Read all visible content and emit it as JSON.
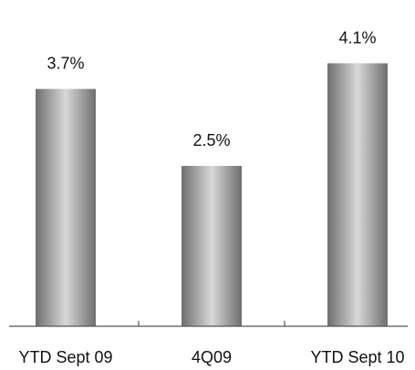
{
  "chart_data": {
    "type": "bar",
    "categories": [
      "YTD Sept 09",
      "4Q09",
      "YTD Sept 10"
    ],
    "values": [
      3.7,
      2.5,
      4.1
    ],
    "value_labels": [
      "3.7%",
      "2.5%",
      "4.1%"
    ],
    "title": "",
    "xlabel": "",
    "ylabel": "",
    "ylim": [
      0,
      4.76
    ],
    "grid": false,
    "legend": "none",
    "bar_fill": "gray-cylinder-gradient"
  },
  "colors": {
    "bar_edge": "#6e6e6e",
    "bar_center": "#d8d8d8",
    "axis": "#555555",
    "text": "#111111"
  }
}
